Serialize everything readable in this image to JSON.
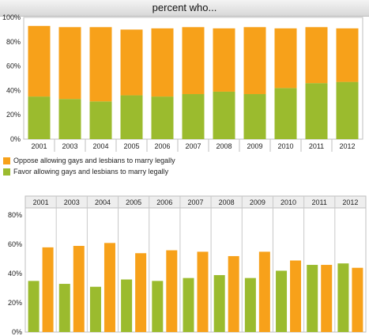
{
  "chart_data": [
    {
      "type": "bar",
      "stacked": true,
      "title": "percent who...",
      "categories": [
        "2001",
        "2003",
        "2004",
        "2005",
        "2006",
        "2007",
        "2008",
        "2009",
        "2010",
        "2011",
        "2012"
      ],
      "series": [
        {
          "name": "Favor allowing gays and lesbians to marry legally",
          "color": "#9bbb2e",
          "values": [
            35,
            33,
            31,
            36,
            35,
            37,
            39,
            37,
            42,
            46,
            47
          ]
        },
        {
          "name": "Oppose allowing gays and lesbians to marry legally",
          "color": "#f7a11a",
          "values": [
            58,
            59,
            61,
            54,
            56,
            55,
            52,
            55,
            49,
            46,
            44
          ]
        }
      ],
      "y_ticks": [
        "0%",
        "20%",
        "40%",
        "60%",
        "80%",
        "100%"
      ],
      "ylim": [
        0,
        100
      ],
      "grid": false,
      "legend": "bottom-left"
    },
    {
      "type": "bar",
      "grouped": true,
      "categories": [
        "2001",
        "2003",
        "2004",
        "2005",
        "2006",
        "2007",
        "2008",
        "2009",
        "2010",
        "2011",
        "2012"
      ],
      "series": [
        {
          "name": "Favor allowing gays and lesbians to marry legally",
          "color": "#9bbb2e",
          "values": [
            35,
            33,
            31,
            36,
            35,
            37,
            39,
            37,
            42,
            46,
            47
          ]
        },
        {
          "name": "Oppose allowing gays and lesbians to marry legally",
          "color": "#f7a11a",
          "values": [
            58,
            59,
            61,
            54,
            56,
            55,
            52,
            55,
            49,
            46,
            44
          ]
        }
      ],
      "y_ticks": [
        "0%",
        "20%",
        "40%",
        "60%",
        "80%"
      ],
      "ylim": [
        0,
        85
      ],
      "grid": false,
      "category_labels_position": "top"
    }
  ]
}
